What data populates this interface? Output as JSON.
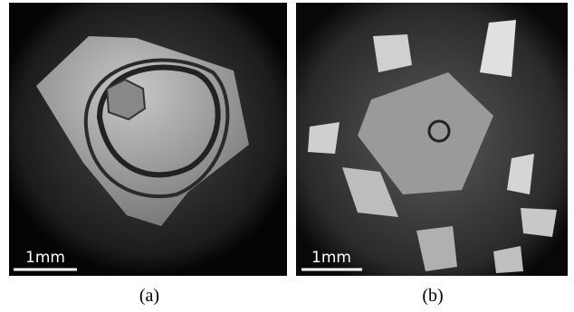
{
  "panels": [
    {
      "label": "(a)",
      "scale_bar": "1mm"
    },
    {
      "label": "(b)",
      "scale_bar": "1mm"
    }
  ]
}
